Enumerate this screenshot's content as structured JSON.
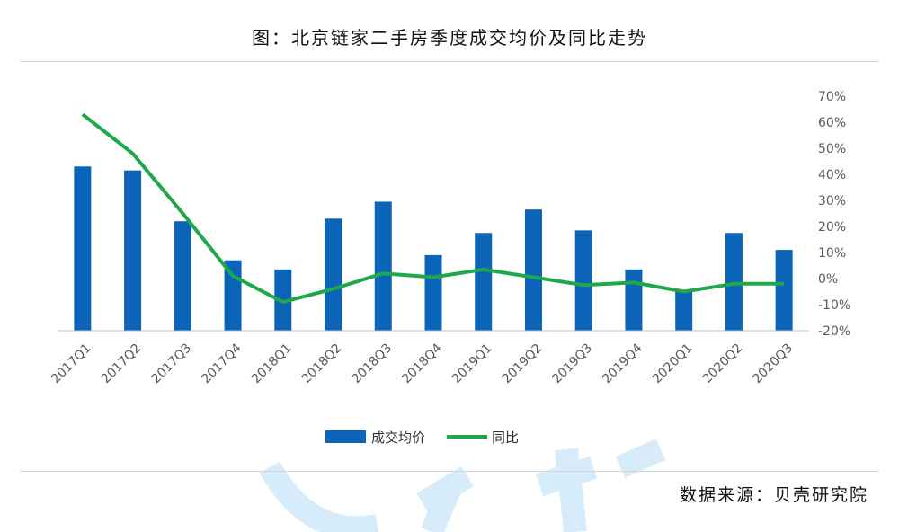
{
  "title": "图：北京链家二手房季度成交均价及同比走势",
  "source": "数据来源：贝壳研究院",
  "colors": {
    "bar": "#0b64b8",
    "line": "#1fa84a",
    "axis": "#bfbfbf",
    "text": "#595959"
  },
  "chart_data": {
    "type": "bar",
    "categories": [
      "2017Q1",
      "2017Q2",
      "2017Q3",
      "2017Q4",
      "2018Q1",
      "2018Q2",
      "2018Q3",
      "2018Q4",
      "2019Q1",
      "2019Q2",
      "2019Q3",
      "2019Q4",
      "2020Q1",
      "2020Q2",
      "2020Q3"
    ],
    "series": [
      {
        "name": "成交均价",
        "type": "bar",
        "axis": "left",
        "values": [
          63,
          61.5,
          42,
          27,
          23.5,
          43,
          49.5,
          29,
          37.5,
          46.5,
          38.5,
          23.5,
          15,
          37.5,
          31
        ]
      },
      {
        "name": "同比",
        "type": "line",
        "axis": "right",
        "values": [
          63,
          48,
          25,
          1,
          -9,
          -4,
          2,
          0.5,
          3.5,
          0.5,
          -2.5,
          -1.5,
          -5,
          -2,
          -2
        ]
      }
    ],
    "y_right": {
      "ticks": [
        "70%",
        "60%",
        "50%",
        "40%",
        "30%",
        "20%",
        "10%",
        "0%",
        "-10%",
        "-20%"
      ],
      "range": [
        -20,
        70
      ]
    },
    "legend": {
      "position": "bottom",
      "entries": [
        "成交均价",
        "同比"
      ]
    },
    "grid": false
  }
}
